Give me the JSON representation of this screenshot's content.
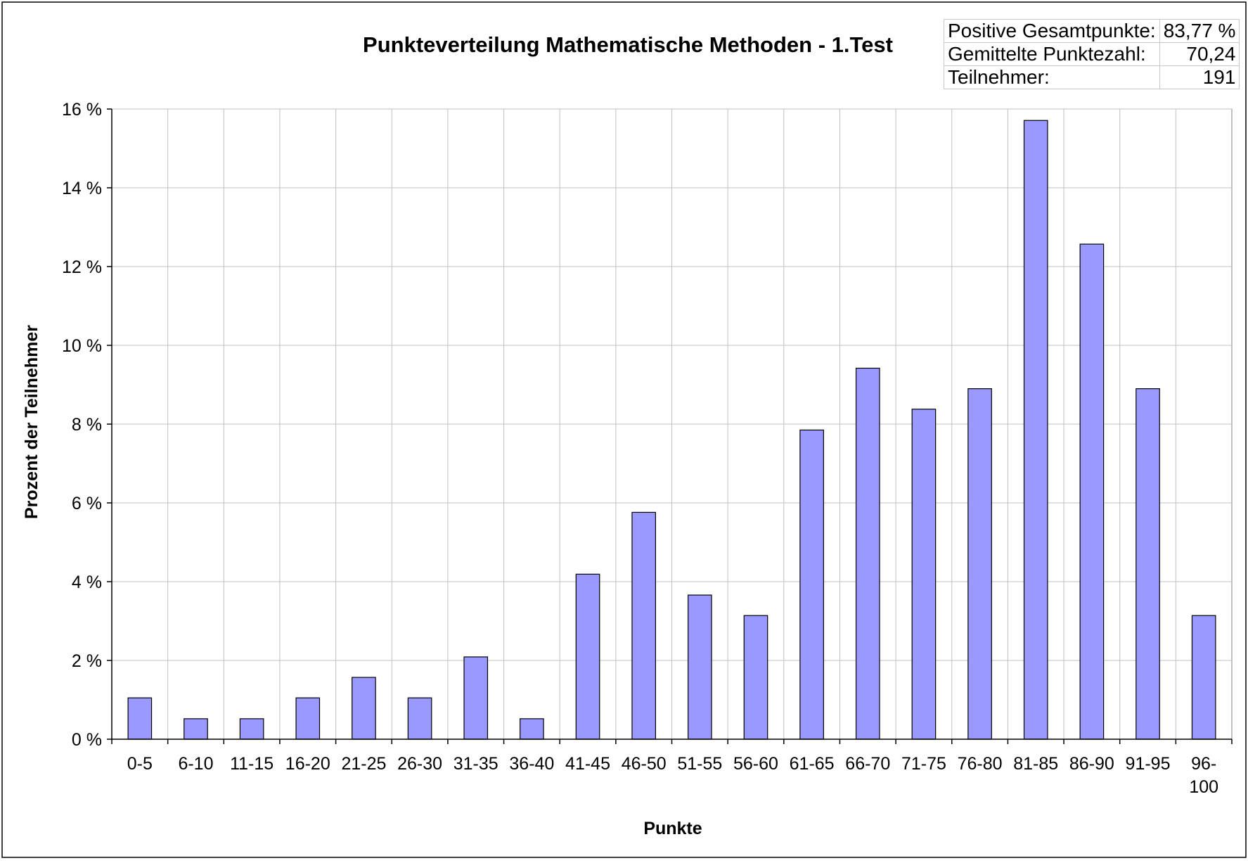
{
  "chart_data": {
    "type": "bar",
    "title": "Punkteverteilung Mathematische Methoden - 1.Test",
    "xlabel": "Punkte",
    "ylabel": "Prozent der Teilnehmer",
    "categories": [
      [
        "0-5"
      ],
      [
        "6-10"
      ],
      [
        "11-15"
      ],
      [
        "16-20"
      ],
      [
        "21-25"
      ],
      [
        "26-30"
      ],
      [
        "31-35"
      ],
      [
        "36-40"
      ],
      [
        "41-45"
      ],
      [
        "46-50"
      ],
      [
        "51-55"
      ],
      [
        "56-60"
      ],
      [
        "61-65"
      ],
      [
        "66-70"
      ],
      [
        "71-75"
      ],
      [
        "76-80"
      ],
      [
        "81-85"
      ],
      [
        "86-90"
      ],
      [
        "91-95"
      ],
      [
        "96-",
        "100"
      ]
    ],
    "values": [
      1.05,
      0.52,
      0.52,
      1.05,
      1.57,
      1.05,
      2.09,
      0.52,
      4.19,
      5.76,
      3.66,
      3.14,
      7.85,
      9.42,
      8.38,
      8.9,
      15.71,
      12.57,
      8.9,
      3.14
    ],
    "ylim": [
      0,
      16
    ],
    "yticks": [
      0,
      2,
      4,
      6,
      8,
      10,
      12,
      14,
      16
    ],
    "ytick_labels": [
      "0 %",
      "2 %",
      "4 %",
      "6 %",
      "8 %",
      "10 %",
      "12 %",
      "14 %",
      "16 %"
    ],
    "grid": true,
    "bar_color": "#9999ff",
    "stats": [
      {
        "label": "Positive Gesamtpunkte:",
        "value": "83,77 %"
      },
      {
        "label": "Gemittelte Punktezahl:",
        "value": "70,24"
      },
      {
        "label": "Teilnehmer:",
        "value": "191"
      }
    ]
  }
}
